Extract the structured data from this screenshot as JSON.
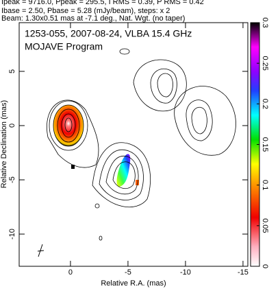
{
  "chart_data": {
    "type": "contour",
    "header": [
      "Ipeak = 9716.0, Ppeak = 295.5, I RMS = 0.39, P RMS = 0.42",
      "Ibase = 2.50, Pbase = 5.28 (mJy/beam), steps: x 2",
      "Beam: 1.30x0.51 mas at -7.1 deg., Nat. Wgt. (no taper)"
    ],
    "title": "1253-055, 2007-08-24, VLBA 15.4 GHz",
    "subtitle": "MOJAVE Program",
    "xlabel": "Relative R.A. (mas)",
    "ylabel": "Relative Declination (mas)",
    "xlim": [
      4.46,
      -15.42
    ],
    "xticks": [
      0,
      -5,
      -10,
      -15
    ],
    "ylim": [
      -12.97,
      9.49
    ],
    "yticks": [
      5,
      0,
      -5,
      -10
    ],
    "clim": [
      0,
      0.3
    ],
    "cticks": [
      0,
      0.05,
      0.1,
      0.15,
      0.2,
      0.25,
      0.3
    ]
  }
}
